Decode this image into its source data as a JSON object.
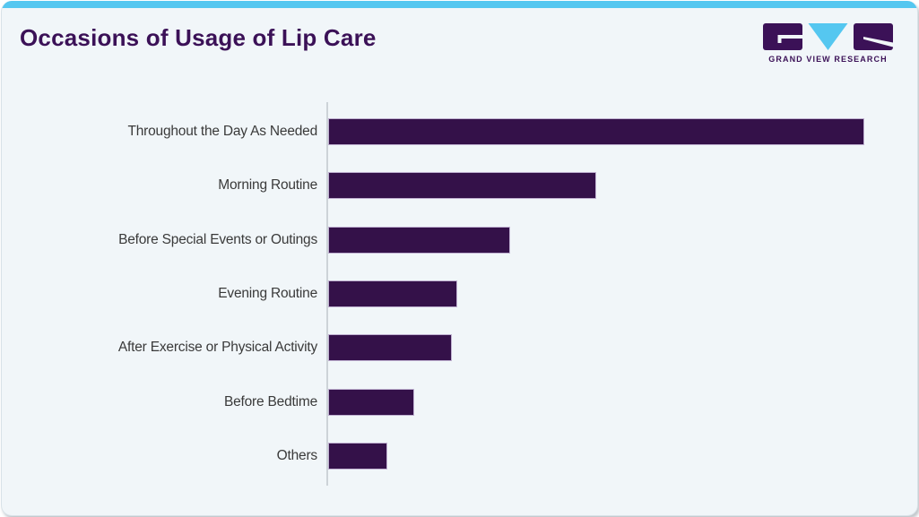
{
  "card": {
    "background": "#f1f6f9",
    "top_accent_color": "#55c7f0",
    "border_color": "#d9e2e8"
  },
  "header": {
    "title": "Occasions of Usage of Lip Care",
    "title_color": "#3b1157"
  },
  "logo": {
    "name": "Grand View Research logo",
    "text": "GRAND VIEW RESEARCH",
    "purple": "#3b1157",
    "blue": "#55c7f0"
  },
  "chart_data": {
    "type": "bar",
    "orientation": "horizontal",
    "title": "Occasions of Usage of Lip Care",
    "categories": [
      "Throughout the Day As Needed",
      "Morning Routine",
      "Before Special Events or Outings",
      "Evening Routine",
      "After Exercise or Physical Activity",
      "Before Bedtime",
      "Others"
    ],
    "values": [
      100,
      50,
      34,
      24,
      23,
      16,
      11
    ],
    "value_units": "relative (no numeric axis or data labels shown; estimated % of longest bar)",
    "value_axis": {
      "visible": false,
      "range": [
        0,
        100
      ]
    },
    "category_axis": {
      "visible": true,
      "line_color": "#cdd3d8"
    },
    "gridlines": false,
    "legend": "none",
    "bar_color": "#341149",
    "bar_border_color": "#bfb0d0",
    "label_color": "#3a3a3a"
  }
}
